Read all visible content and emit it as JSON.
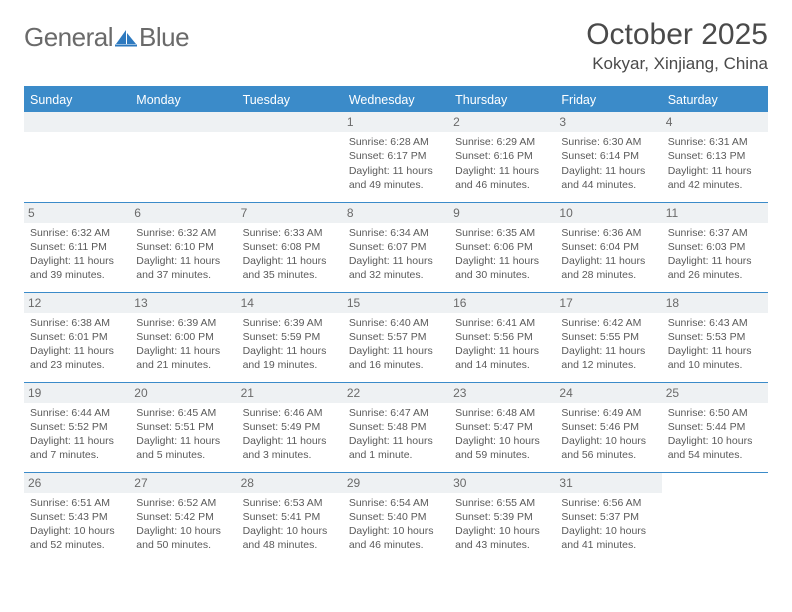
{
  "brand": {
    "word1": "General",
    "word2": "Blue"
  },
  "title": "October 2025",
  "location": "Kokyar, Xinjiang, China",
  "columns": [
    "Sunday",
    "Monday",
    "Tuesday",
    "Wednesday",
    "Thursday",
    "Friday",
    "Saturday"
  ],
  "colors": {
    "header_bg": "#3b8bc9",
    "header_text": "#ffffff",
    "daynum_bg": "#eef1f3",
    "text": "#5a5a5a",
    "rule": "#3b8bc9",
    "logo_blue": "#2d79bf"
  },
  "weeks": [
    [
      null,
      null,
      null,
      {
        "n": "1",
        "sunrise": "6:28 AM",
        "sunset": "6:17 PM",
        "daylight": "11 hours and 49 minutes."
      },
      {
        "n": "2",
        "sunrise": "6:29 AM",
        "sunset": "6:16 PM",
        "daylight": "11 hours and 46 minutes."
      },
      {
        "n": "3",
        "sunrise": "6:30 AM",
        "sunset": "6:14 PM",
        "daylight": "11 hours and 44 minutes."
      },
      {
        "n": "4",
        "sunrise": "6:31 AM",
        "sunset": "6:13 PM",
        "daylight": "11 hours and 42 minutes."
      }
    ],
    [
      {
        "n": "5",
        "sunrise": "6:32 AM",
        "sunset": "6:11 PM",
        "daylight": "11 hours and 39 minutes."
      },
      {
        "n": "6",
        "sunrise": "6:32 AM",
        "sunset": "6:10 PM",
        "daylight": "11 hours and 37 minutes."
      },
      {
        "n": "7",
        "sunrise": "6:33 AM",
        "sunset": "6:08 PM",
        "daylight": "11 hours and 35 minutes."
      },
      {
        "n": "8",
        "sunrise": "6:34 AM",
        "sunset": "6:07 PM",
        "daylight": "11 hours and 32 minutes."
      },
      {
        "n": "9",
        "sunrise": "6:35 AM",
        "sunset": "6:06 PM",
        "daylight": "11 hours and 30 minutes."
      },
      {
        "n": "10",
        "sunrise": "6:36 AM",
        "sunset": "6:04 PM",
        "daylight": "11 hours and 28 minutes."
      },
      {
        "n": "11",
        "sunrise": "6:37 AM",
        "sunset": "6:03 PM",
        "daylight": "11 hours and 26 minutes."
      }
    ],
    [
      {
        "n": "12",
        "sunrise": "6:38 AM",
        "sunset": "6:01 PM",
        "daylight": "11 hours and 23 minutes."
      },
      {
        "n": "13",
        "sunrise": "6:39 AM",
        "sunset": "6:00 PM",
        "daylight": "11 hours and 21 minutes."
      },
      {
        "n": "14",
        "sunrise": "6:39 AM",
        "sunset": "5:59 PM",
        "daylight": "11 hours and 19 minutes."
      },
      {
        "n": "15",
        "sunrise": "6:40 AM",
        "sunset": "5:57 PM",
        "daylight": "11 hours and 16 minutes."
      },
      {
        "n": "16",
        "sunrise": "6:41 AM",
        "sunset": "5:56 PM",
        "daylight": "11 hours and 14 minutes."
      },
      {
        "n": "17",
        "sunrise": "6:42 AM",
        "sunset": "5:55 PM",
        "daylight": "11 hours and 12 minutes."
      },
      {
        "n": "18",
        "sunrise": "6:43 AM",
        "sunset": "5:53 PM",
        "daylight": "11 hours and 10 minutes."
      }
    ],
    [
      {
        "n": "19",
        "sunrise": "6:44 AM",
        "sunset": "5:52 PM",
        "daylight": "11 hours and 7 minutes."
      },
      {
        "n": "20",
        "sunrise": "6:45 AM",
        "sunset": "5:51 PM",
        "daylight": "11 hours and 5 minutes."
      },
      {
        "n": "21",
        "sunrise": "6:46 AM",
        "sunset": "5:49 PM",
        "daylight": "11 hours and 3 minutes."
      },
      {
        "n": "22",
        "sunrise": "6:47 AM",
        "sunset": "5:48 PM",
        "daylight": "11 hours and 1 minute."
      },
      {
        "n": "23",
        "sunrise": "6:48 AM",
        "sunset": "5:47 PM",
        "daylight": "10 hours and 59 minutes."
      },
      {
        "n": "24",
        "sunrise": "6:49 AM",
        "sunset": "5:46 PM",
        "daylight": "10 hours and 56 minutes."
      },
      {
        "n": "25",
        "sunrise": "6:50 AM",
        "sunset": "5:44 PM",
        "daylight": "10 hours and 54 minutes."
      }
    ],
    [
      {
        "n": "26",
        "sunrise": "6:51 AM",
        "sunset": "5:43 PM",
        "daylight": "10 hours and 52 minutes."
      },
      {
        "n": "27",
        "sunrise": "6:52 AM",
        "sunset": "5:42 PM",
        "daylight": "10 hours and 50 minutes."
      },
      {
        "n": "28",
        "sunrise": "6:53 AM",
        "sunset": "5:41 PM",
        "daylight": "10 hours and 48 minutes."
      },
      {
        "n": "29",
        "sunrise": "6:54 AM",
        "sunset": "5:40 PM",
        "daylight": "10 hours and 46 minutes."
      },
      {
        "n": "30",
        "sunrise": "6:55 AM",
        "sunset": "5:39 PM",
        "daylight": "10 hours and 43 minutes."
      },
      {
        "n": "31",
        "sunrise": "6:56 AM",
        "sunset": "5:37 PM",
        "daylight": "10 hours and 41 minutes."
      },
      null
    ]
  ],
  "labels": {
    "sunrise": "Sunrise:",
    "sunset": "Sunset:",
    "daylight": "Daylight:"
  }
}
